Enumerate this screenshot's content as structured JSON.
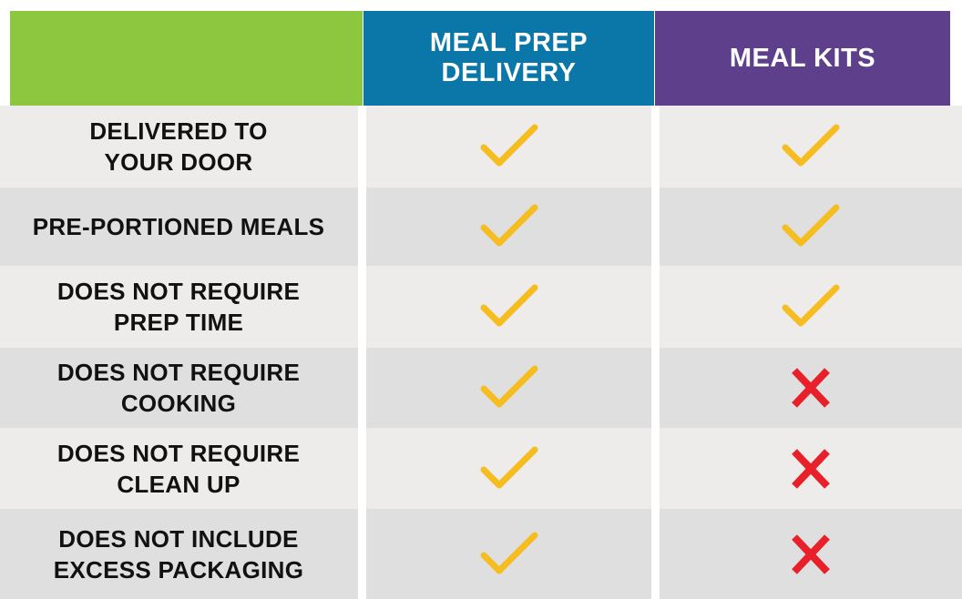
{
  "headers": {
    "meal_prep_delivery": "MEAL PREP DELIVERY",
    "meal_kits": "MEAL KITS"
  },
  "colors": {
    "header_blank": "#8dc63f",
    "header_meal_prep_delivery": "#0b77a8",
    "header_meal_kits": "#5e3f8b",
    "check": "#f5bd1f",
    "cross": "#e8202a"
  },
  "rows": [
    {
      "label": "DELIVERED TO\nYOUR DOOR",
      "meal_prep_delivery": "check-icon",
      "meal_kits": "check-icon"
    },
    {
      "label": "PRE-PORTIONED MEALS",
      "meal_prep_delivery": "check-icon",
      "meal_kits": "check-icon"
    },
    {
      "label": "DOES NOT REQUIRE\nPREP TIME",
      "meal_prep_delivery": "check-icon",
      "meal_kits": "check-icon"
    },
    {
      "label": "DOES NOT REQUIRE\nCOOKING",
      "meal_prep_delivery": "check-icon",
      "meal_kits": "cross-icon"
    },
    {
      "label": "DOES NOT REQUIRE\nCLEAN UP",
      "meal_prep_delivery": "check-icon",
      "meal_kits": "cross-icon"
    },
    {
      "label": "DOES NOT INCLUDE\nEXCESS PACKAGING",
      "meal_prep_delivery": "check-icon",
      "meal_kits": "cross-icon"
    }
  ]
}
